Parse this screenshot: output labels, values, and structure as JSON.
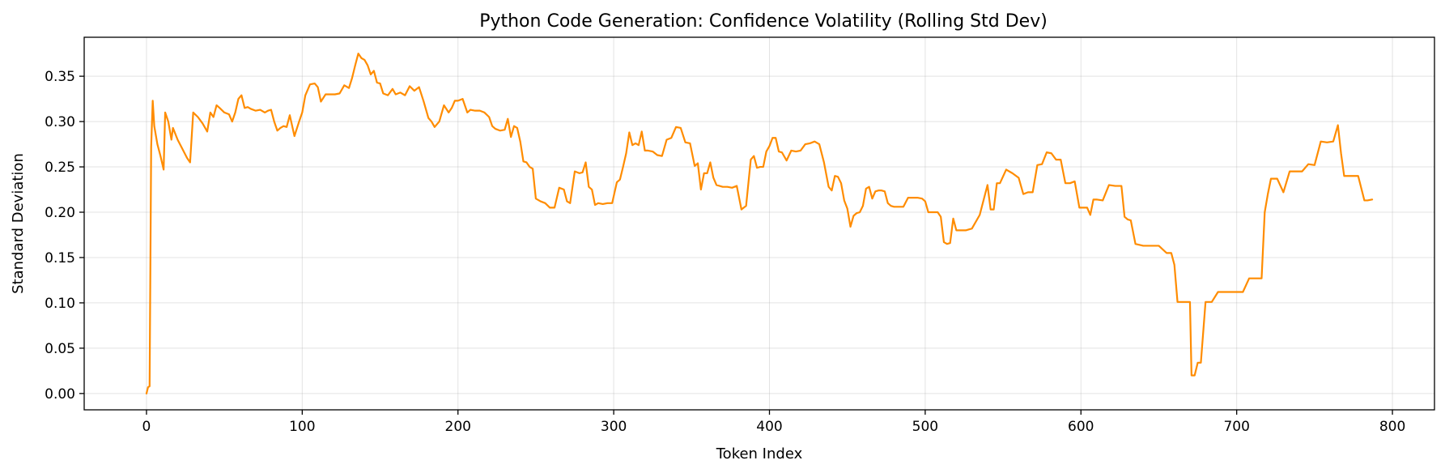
{
  "chart_data": {
    "type": "line",
    "title": "Python Code Generation: Confidence Volatility (Rolling Std Dev)",
    "xlabel": "Token Index",
    "ylabel": "Standard Deviation",
    "xlim": [
      -40,
      827
    ],
    "ylim": [
      -0.018,
      0.393
    ],
    "xticks": [
      0,
      100,
      200,
      300,
      400,
      500,
      600,
      700,
      800
    ],
    "xtick_labels": [
      "0",
      "100",
      "200",
      "300",
      "400",
      "500",
      "600",
      "700",
      "800"
    ],
    "yticks": [
      0.0,
      0.05,
      0.1,
      0.15,
      0.2,
      0.25,
      0.3,
      0.35
    ],
    "ytick_labels": [
      "0.00",
      "0.05",
      "0.10",
      "0.15",
      "0.20",
      "0.25",
      "0.30",
      "0.35"
    ],
    "grid": true,
    "line_color": "#ff8c00",
    "series": [
      {
        "x": [
          0,
          1,
          2,
          3,
          4,
          5,
          7,
          9,
          11,
          12,
          14,
          16,
          17,
          20,
          23,
          26,
          28,
          30,
          33,
          36,
          39,
          41,
          43,
          45,
          47,
          50,
          53,
          55,
          57,
          59,
          61,
          63,
          65,
          67,
          70,
          73,
          76,
          78,
          80,
          82,
          84,
          86,
          88,
          90,
          92,
          95,
          98,
          100,
          102,
          105,
          108,
          110,
          112,
          115,
          118,
          121,
          124,
          127,
          130,
          132,
          134,
          136,
          138,
          140,
          142,
          144,
          146,
          148,
          150,
          152,
          155,
          158,
          160,
          163,
          166,
          169,
          172,
          175,
          178,
          181,
          183,
          185,
          188,
          191,
          194,
          196,
          198,
          200,
          203,
          206,
          208,
          211,
          214,
          217,
          220,
          222,
          224,
          227,
          230,
          232,
          234,
          236,
          238,
          240,
          242,
          244,
          246,
          248,
          250,
          253,
          256,
          259,
          262,
          265,
          268,
          270,
          272,
          275,
          278,
          280,
          282,
          284,
          286,
          288,
          290,
          293,
          296,
          299,
          302,
          304,
          306,
          308,
          310,
          312,
          314,
          316,
          318,
          320,
          322,
          325,
          328,
          331,
          334,
          337,
          340,
          343,
          346,
          349,
          352,
          354,
          356,
          358,
          360,
          362,
          364,
          366,
          368,
          370,
          373,
          376,
          379,
          382,
          385,
          388,
          390,
          392,
          394,
          396,
          398,
          400,
          402,
          404,
          406,
          408,
          411,
          414,
          417,
          420,
          423,
          426,
          429,
          432,
          435,
          438,
          440,
          442,
          444,
          446,
          448,
          450,
          452,
          454,
          456,
          458,
          460,
          462,
          464,
          466,
          468,
          470,
          472,
          474,
          476,
          478,
          480,
          483,
          486,
          489,
          492,
          495,
          498,
          500,
          502,
          504,
          506,
          508,
          510,
          512,
          514,
          516,
          518,
          520,
          522,
          524,
          526,
          530,
          535,
          540,
          542,
          544,
          546,
          548,
          552,
          556,
          560,
          563,
          566,
          569,
          572,
          575,
          578,
          581,
          584,
          587,
          590,
          593,
          596,
          599,
          602,
          604,
          606,
          608,
          610,
          614,
          618,
          622,
          626,
          628,
          630,
          632,
          635,
          640,
          645,
          650,
          655,
          658,
          660,
          662,
          665,
          668,
          670,
          671,
          673,
          675,
          677,
          680,
          684,
          688,
          692,
          696,
          700,
          704,
          708,
          712,
          716,
          718,
          720,
          722,
          726,
          730,
          734,
          738,
          742,
          746,
          750,
          754,
          758,
          762,
          765,
          767,
          769,
          771,
          774,
          778,
          782,
          784,
          787
        ],
        "y": [
          0.0,
          0.007,
          0.008,
          0.272,
          0.323,
          0.295,
          0.275,
          0.262,
          0.247,
          0.31,
          0.3,
          0.28,
          0.293,
          0.28,
          0.27,
          0.26,
          0.255,
          0.31,
          0.305,
          0.298,
          0.289,
          0.31,
          0.305,
          0.318,
          0.315,
          0.31,
          0.308,
          0.3,
          0.31,
          0.325,
          0.329,
          0.315,
          0.316,
          0.314,
          0.312,
          0.313,
          0.31,
          0.312,
          0.313,
          0.3,
          0.29,
          0.293,
          0.295,
          0.294,
          0.307,
          0.284,
          0.3,
          0.31,
          0.329,
          0.341,
          0.342,
          0.338,
          0.322,
          0.33,
          0.33,
          0.33,
          0.331,
          0.34,
          0.337,
          0.348,
          0.362,
          0.375,
          0.37,
          0.368,
          0.362,
          0.352,
          0.356,
          0.343,
          0.342,
          0.331,
          0.329,
          0.336,
          0.33,
          0.332,
          0.329,
          0.339,
          0.334,
          0.338,
          0.322,
          0.304,
          0.3,
          0.294,
          0.3,
          0.318,
          0.31,
          0.315,
          0.323,
          0.323,
          0.325,
          0.31,
          0.313,
          0.312,
          0.312,
          0.31,
          0.305,
          0.295,
          0.292,
          0.29,
          0.291,
          0.303,
          0.283,
          0.295,
          0.293,
          0.278,
          0.256,
          0.255,
          0.25,
          0.248,
          0.215,
          0.212,
          0.21,
          0.205,
          0.205,
          0.227,
          0.225,
          0.212,
          0.21,
          0.245,
          0.243,
          0.244,
          0.255,
          0.228,
          0.225,
          0.208,
          0.21,
          0.209,
          0.21,
          0.21,
          0.233,
          0.236,
          0.25,
          0.265,
          0.288,
          0.274,
          0.276,
          0.274,
          0.289,
          0.268,
          0.268,
          0.267,
          0.263,
          0.262,
          0.28,
          0.282,
          0.294,
          0.293,
          0.277,
          0.276,
          0.251,
          0.254,
          0.225,
          0.243,
          0.243,
          0.255,
          0.238,
          0.23,
          0.229,
          0.228,
          0.228,
          0.227,
          0.229,
          0.203,
          0.207,
          0.258,
          0.262,
          0.249,
          0.25,
          0.25,
          0.267,
          0.273,
          0.282,
          0.282,
          0.267,
          0.266,
          0.257,
          0.268,
          0.267,
          0.268,
          0.275,
          0.276,
          0.278,
          0.275,
          0.255,
          0.228,
          0.224,
          0.24,
          0.239,
          0.232,
          0.213,
          0.204,
          0.184,
          0.196,
          0.199,
          0.2,
          0.207,
          0.226,
          0.228,
          0.215,
          0.223,
          0.224,
          0.224,
          0.223,
          0.21,
          0.207,
          0.206,
          0.206,
          0.206,
          0.216,
          0.216,
          0.216,
          0.215,
          0.212,
          0.2,
          0.2,
          0.2,
          0.2,
          0.195,
          0.167,
          0.165,
          0.166,
          0.193,
          0.18,
          0.18,
          0.18,
          0.18,
          0.182,
          0.197,
          0.23,
          0.203,
          0.203,
          0.232,
          0.232,
          0.247,
          0.243,
          0.238,
          0.22,
          0.222,
          0.222,
          0.252,
          0.253,
          0.266,
          0.265,
          0.258,
          0.258,
          0.232,
          0.232,
          0.234,
          0.205,
          0.205,
          0.205,
          0.197,
          0.214,
          0.214,
          0.213,
          0.23,
          0.229,
          0.229,
          0.195,
          0.192,
          0.191,
          0.165,
          0.163,
          0.163,
          0.163,
          0.155,
          0.155,
          0.142,
          0.101,
          0.101,
          0.101,
          0.101,
          0.02,
          0.02,
          0.034,
          0.034,
          0.101,
          0.101,
          0.112,
          0.112,
          0.112,
          0.112,
          0.112,
          0.127,
          0.127,
          0.127,
          0.2,
          0.22,
          0.237,
          0.237,
          0.222,
          0.245,
          0.245,
          0.245,
          0.253,
          0.252,
          0.278,
          0.277,
          0.278,
          0.296,
          0.265,
          0.24,
          0.24,
          0.24,
          0.24,
          0.213,
          0.213,
          0.214
        ]
      }
    ]
  }
}
